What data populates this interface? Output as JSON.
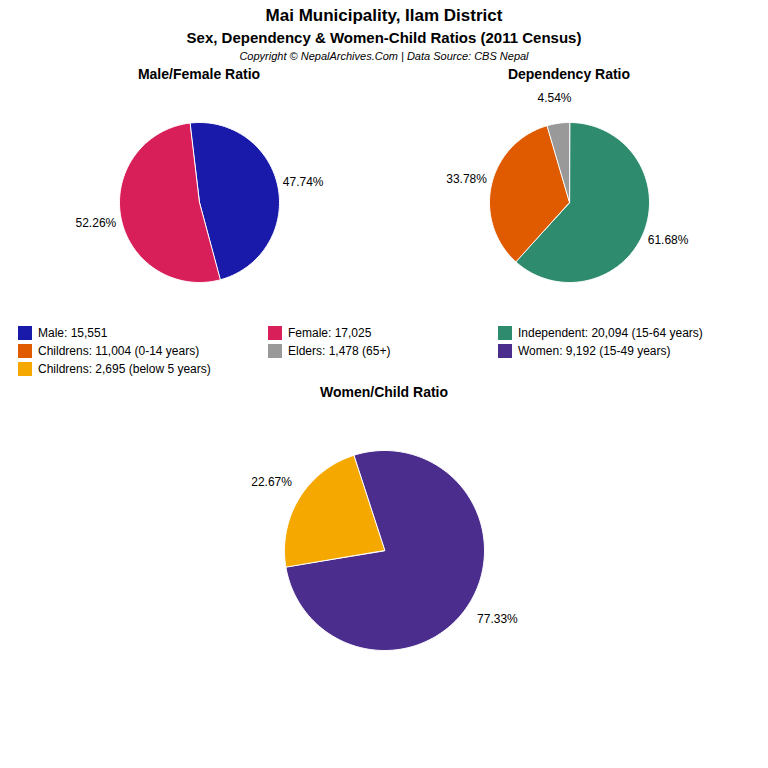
{
  "title": "Mai Municipality, Ilam District",
  "subtitle": "Sex, Dependency & Women-Child Ratios (2011 Census)",
  "annotations": [
    "Copyright © NepalArchives.Com | Data Source: CBS Nepal"
  ],
  "chart_data": [
    {
      "type": "pie",
      "title": "Male/Female Ratio",
      "categories": [
        "Male: 15,551",
        "Female: 17,025"
      ],
      "values": [
        47.74,
        52.26
      ],
      "value_labels": [
        "47.74%",
        "52.26%"
      ],
      "colors": [
        "#1a1aaa",
        "#d91f5a"
      ],
      "data_labels": true,
      "legend": "bottom"
    },
    {
      "type": "pie",
      "title": "Dependency Ratio",
      "categories": [
        "Independent: 20,094 (15-64 years)",
        "Childrens: 11,004 (0-14 years)",
        "Elders: 1,478 (65+)"
      ],
      "values": [
        61.68,
        33.78,
        4.54
      ],
      "value_labels": [
        "61.68%",
        "33.78%",
        "4.54%"
      ],
      "colors": [
        "#2e8b6e",
        "#e05a00",
        "#999999"
      ],
      "data_labels": true,
      "legend": "bottom"
    },
    {
      "type": "pie",
      "title": "Women/Child Ratio",
      "categories": [
        "Women: 9,192 (15-49 years)",
        "Childrens: 2,695 (below 5 years)"
      ],
      "values": [
        77.33,
        22.67
      ],
      "value_labels": [
        "77.33%",
        "22.67%"
      ],
      "colors": [
        "#4b2d8e",
        "#f5a800"
      ],
      "data_labels": true,
      "legend": "top"
    }
  ]
}
